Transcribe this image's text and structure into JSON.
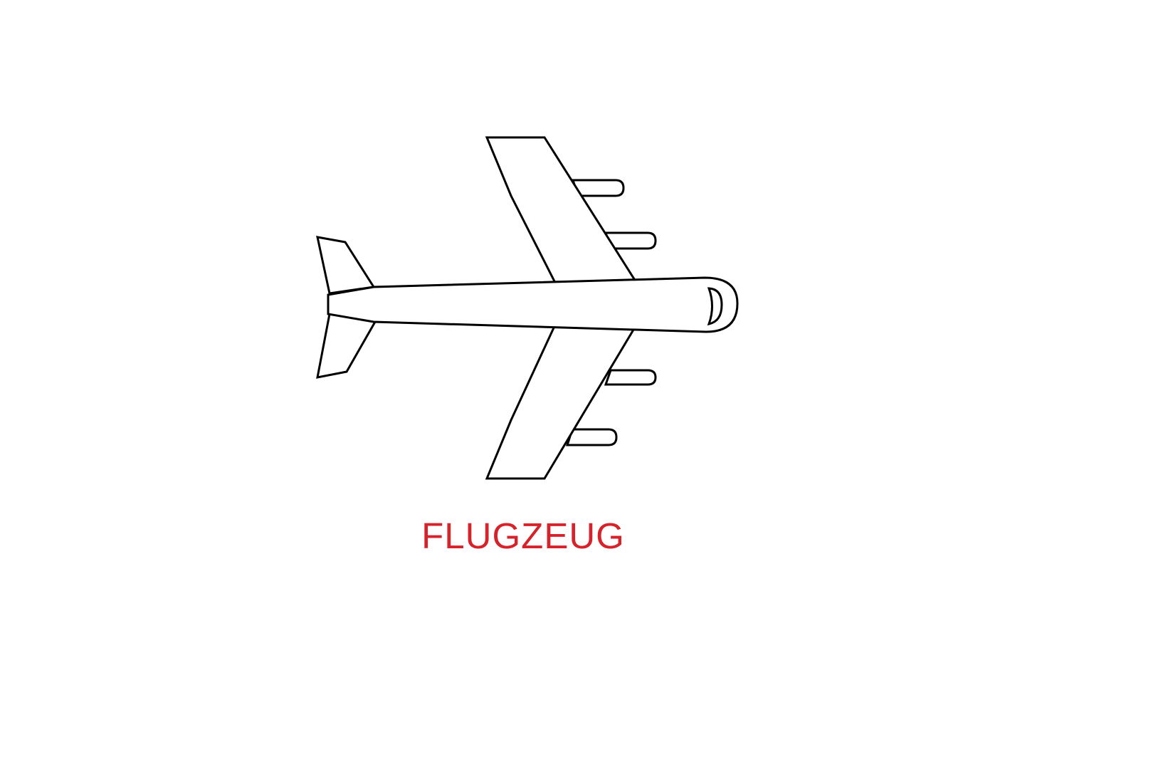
{
  "caption": {
    "text": "FLUGZEUG",
    "color": "#d6222a"
  },
  "illustration": {
    "subject": "airplane-icon",
    "stroke_color": "#000000",
    "fill_color": "#ffffff"
  }
}
